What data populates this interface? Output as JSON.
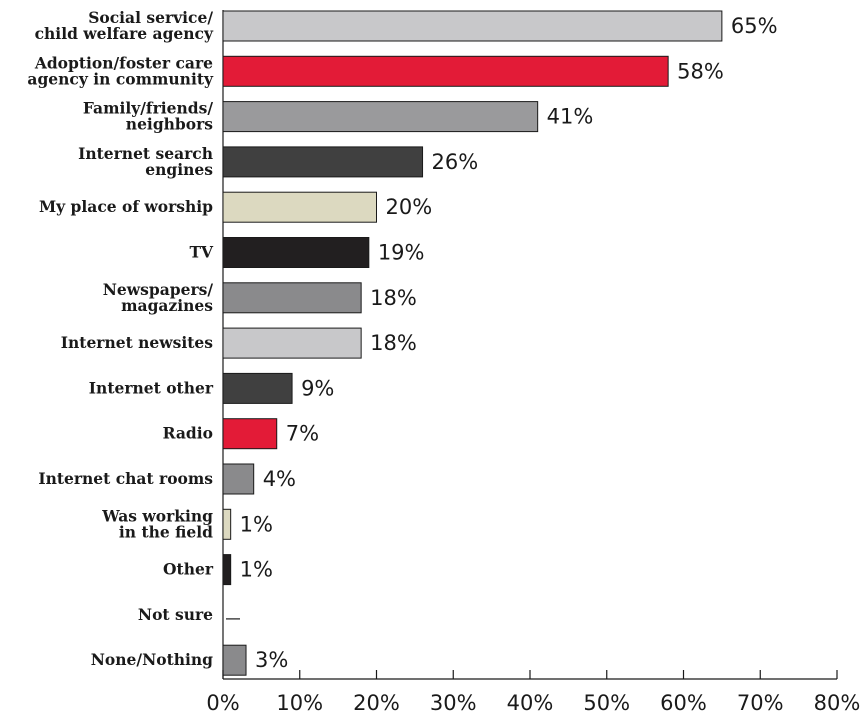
{
  "chart_data": {
    "type": "bar",
    "orientation": "horizontal",
    "categories": [
      [
        "Social service/",
        "child welfare agency"
      ],
      [
        "Adoption/foster care",
        "agency in community"
      ],
      [
        "Family/friends/",
        "neighbors"
      ],
      [
        "Internet search",
        "engines"
      ],
      [
        "My place of worship"
      ],
      [
        "TV"
      ],
      [
        "Newspapers/",
        "magazines"
      ],
      [
        "Internet newsites"
      ],
      [
        "Internet other"
      ],
      [
        "Radio"
      ],
      [
        "Internet chat rooms"
      ],
      [
        "Was working",
        "in the field"
      ],
      [
        "Other"
      ],
      [
        "Not sure"
      ],
      [
        "None/Nothing"
      ]
    ],
    "values": [
      65,
      58,
      41,
      26,
      20,
      19,
      18,
      18,
      9,
      7,
      4,
      1,
      1,
      null,
      3
    ],
    "value_labels": [
      "65%",
      "58%",
      "41%",
      "26%",
      "20%",
      "19%",
      "18%",
      "18%",
      "9%",
      "7%",
      "4%",
      "1%",
      "1%",
      "—",
      "3%"
    ],
    "bar_colors": [
      "#c8c8ca",
      "#e31b37",
      "#9a9a9c",
      "#404040",
      "#dcd9c0",
      "#221f20",
      "#8a8a8c",
      "#c8c8ca",
      "#404040",
      "#e31b37",
      "#8a8a8c",
      "#dcd9c0",
      "#221f20",
      "#ffffff",
      "#8a8a8c"
    ],
    "xlim": [
      0,
      80
    ],
    "xticks": [
      0,
      10,
      20,
      30,
      40,
      50,
      60,
      70,
      80
    ],
    "xtick_labels": [
      "0%",
      "10%",
      "20%",
      "30%",
      "40%",
      "50%",
      "60%",
      "70%",
      "80%"
    ],
    "title": "",
    "xlabel": "",
    "ylabel": "",
    "grid": false,
    "legend": "none"
  }
}
